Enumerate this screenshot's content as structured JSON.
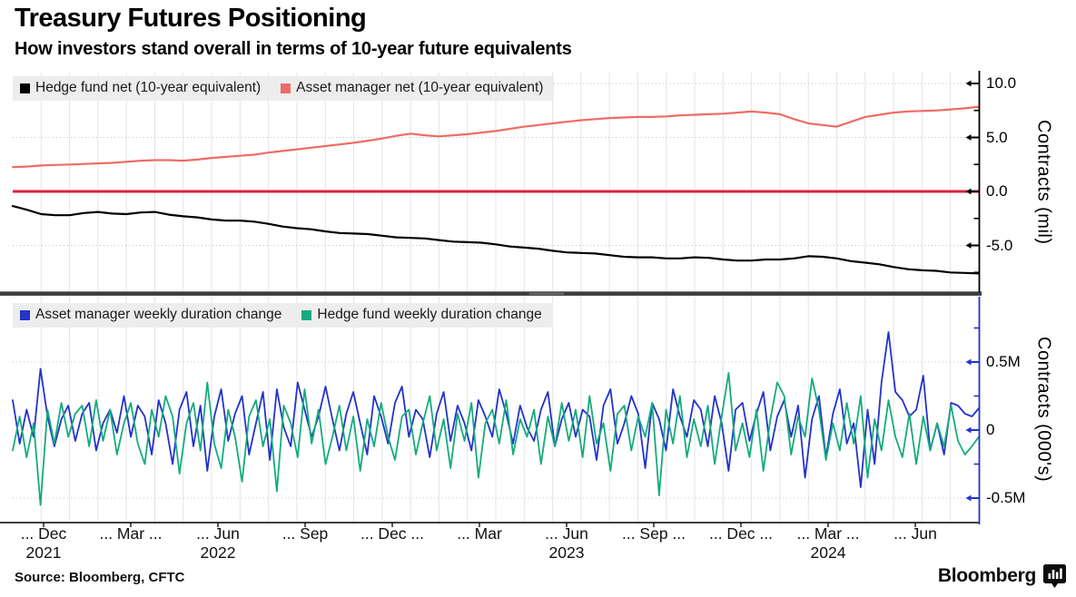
{
  "header": {
    "title": "Treasury Futures Positioning",
    "subtitle": "How investors stand overall in terms of 10-year future equivalents"
  },
  "source": {
    "label": "Source: Bloomberg, CFTC"
  },
  "branding": {
    "logo_text": "Bloomberg",
    "logo_icon": "bloomberg-bars-icon"
  },
  "colors": {
    "hedge_fund_net": "#000000",
    "asset_manager_net": "#ee6c66",
    "zero_line": "#d8213f",
    "am_duration": "#2333cb",
    "hf_duration": "#15ab7d",
    "grid_vertical": "#e4e4e4",
    "grid_dotted": "#c0c0c0",
    "legend_bg": "#ededed",
    "divider": "#3d3d3d"
  },
  "xaxis": {
    "labels": [
      {
        "label": "... Dec"
      },
      {
        "label": "... Mar ..."
      },
      {
        "label": "... Jun"
      },
      {
        "label": "... Sep"
      },
      {
        "label": "... Dec ..."
      },
      {
        "label": "... Mar"
      },
      {
        "label": "... Jun"
      },
      {
        "label": "... Sep ..."
      },
      {
        "label": "... Dec ..."
      },
      {
        "label": "... Mar ..."
      },
      {
        "label": "... Jun"
      }
    ],
    "years": [
      {
        "label": "2021"
      },
      {
        "label": "2022"
      },
      {
        "label": "2023"
      },
      {
        "label": "2024"
      }
    ],
    "range": "Oct 2021 - Jul 2024"
  },
  "chart_data": [
    {
      "type": "line",
      "panel": "top",
      "ylabel": "Contracts (mil)",
      "ylim": [
        -9.3,
        11
      ],
      "grid": true,
      "legend_position": "top-left",
      "legend": [
        {
          "label": "Hedge fund net (10-year equivalent)",
          "color_key": "hedge_fund_net"
        },
        {
          "label": "Asset manager net (10-year equivalent)",
          "color_key": "asset_manager_net"
        }
      ],
      "yticks": [
        {
          "value": 10,
          "label": "10.0"
        },
        {
          "value": 5,
          "label": "5.0"
        },
        {
          "value": 0,
          "label": "0.0"
        },
        {
          "value": -5,
          "label": "-5.0"
        }
      ],
      "zero_line": true,
      "series": [
        {
          "name": "Hedge fund net (10-year equivalent)",
          "color_key": "hedge_fund_net",
          "width": 2.2,
          "values": [
            -1.35,
            -1.7,
            -2.1,
            -2.2,
            -2.2,
            -2.0,
            -1.9,
            -2.05,
            -2.1,
            -1.95,
            -1.9,
            -2.15,
            -2.3,
            -2.4,
            -2.6,
            -2.7,
            -2.7,
            -2.8,
            -3.0,
            -3.25,
            -3.4,
            -3.5,
            -3.7,
            -3.85,
            -3.9,
            -3.95,
            -4.1,
            -4.25,
            -4.3,
            -4.35,
            -4.5,
            -4.65,
            -4.7,
            -4.75,
            -4.9,
            -5.1,
            -5.2,
            -5.3,
            -5.5,
            -5.65,
            -5.7,
            -5.75,
            -5.9,
            -6.05,
            -6.1,
            -6.1,
            -6.2,
            -6.2,
            -6.1,
            -6.15,
            -6.3,
            -6.4,
            -6.4,
            -6.3,
            -6.3,
            -6.2,
            -6.0,
            -6.05,
            -6.2,
            -6.45,
            -6.6,
            -6.75,
            -7.0,
            -7.2,
            -7.3,
            -7.35,
            -7.5,
            -7.55,
            -7.6
          ]
        },
        {
          "name": "Asset manager net (10-year equivalent)",
          "color_key": "asset_manager_net",
          "width": 2.2,
          "values": [
            2.25,
            2.3,
            2.4,
            2.45,
            2.5,
            2.55,
            2.6,
            2.65,
            2.75,
            2.85,
            2.9,
            2.9,
            2.85,
            2.95,
            3.1,
            3.2,
            3.3,
            3.4,
            3.6,
            3.75,
            3.9,
            4.05,
            4.2,
            4.35,
            4.5,
            4.7,
            4.9,
            5.15,
            5.35,
            5.2,
            5.1,
            5.2,
            5.3,
            5.45,
            5.6,
            5.8,
            6.0,
            6.15,
            6.3,
            6.45,
            6.6,
            6.7,
            6.8,
            6.85,
            6.9,
            6.9,
            6.95,
            7.05,
            7.1,
            7.15,
            7.2,
            7.3,
            7.4,
            7.3,
            7.15,
            6.7,
            6.3,
            6.15,
            6.0,
            6.45,
            6.9,
            7.1,
            7.3,
            7.4,
            7.45,
            7.5,
            7.6,
            7.7,
            7.85
          ]
        }
      ]
    },
    {
      "type": "line",
      "panel": "bottom",
      "ylabel": "Contracts (000's)",
      "ylim": [
        -0.68,
        0.96
      ],
      "grid": true,
      "legend_position": "top-left",
      "legend": [
        {
          "label": "Asset manager weekly duration change",
          "color_key": "am_duration"
        },
        {
          "label": "Hedge fund weekly duration change",
          "color_key": "hf_duration"
        }
      ],
      "yticks": [
        {
          "value": 0.5,
          "label": "0.5M"
        },
        {
          "value": 0,
          "label": "0"
        },
        {
          "value": -0.5,
          "label": "-0.5M"
        }
      ],
      "zero_line": false,
      "series": [
        {
          "name": "Asset manager weekly duration change",
          "color_key": "am_duration",
          "width": 1.8,
          "values": [
            0.22,
            -0.1,
            0.15,
            -0.05,
            0.45,
            0.1,
            -0.12,
            0.08,
            0.18,
            -0.08,
            0.12,
            0.2,
            -0.15,
            0.05,
            0.15,
            -0.02,
            0.25,
            -0.05,
            0.18,
            0.1,
            -0.18,
            0.22,
            0.05,
            -0.25,
            0.15,
            0.28,
            -0.12,
            0.18,
            -0.3,
            0.1,
            0.3,
            -0.08,
            0.12,
            0.25,
            -0.18,
            0.05,
            0.28,
            -0.22,
            0.3,
            0.02,
            -0.12,
            0.35,
            0.15,
            -0.05,
            0.1,
            0.32,
            0.08,
            -0.15,
            0.12,
            0.28,
            0.05,
            -0.18,
            0.25,
            0.1,
            -0.1,
            0.2,
            0.32,
            -0.05,
            0.15,
            0.08,
            -0.2,
            0.12,
            0.28,
            -0.08,
            0.18,
            0.05,
            -0.15,
            0.22,
            0.1,
            -0.05,
            0.3,
            0.12,
            -0.1,
            0.18,
            0.02,
            -0.08,
            0.15,
            0.28,
            -0.12,
            0.08,
            0.2,
            -0.05,
            0.15,
            0.1,
            -0.22,
            0.18,
            0.3,
            -0.1,
            0.05,
            0.25,
            0.12,
            -0.28,
            0.2,
            0.08,
            -0.15,
            0.3,
            0.1,
            -0.05,
            0.22,
            0.15,
            -0.12,
            0.25,
            0.05,
            -0.3,
            0.15,
            0.2,
            -0.08,
            0.12,
            0.28,
            -0.15,
            0.1,
            0.22,
            -0.05,
            0.18,
            -0.35,
            0.08,
            0.25,
            -0.2,
            0.12,
            0.3,
            -0.1,
            0.05,
            -0.42,
            0.15,
            -0.25,
            0.35,
            0.72,
            0.28,
            0.22,
            0.1,
            0.15,
            0.4,
            -0.15,
            0.05,
            -0.18,
            0.2,
            0.18,
            0.12,
            0.1,
            0.16
          ]
        },
        {
          "name": "Hedge fund weekly duration change",
          "color_key": "hf_duration",
          "width": 1.8,
          "values": [
            -0.15,
            0.1,
            -0.2,
            0.05,
            -0.55,
            0.15,
            -0.1,
            0.2,
            -0.05,
            0.12,
            0.18,
            -0.12,
            0.22,
            -0.08,
            0.15,
            -0.18,
            0.05,
            0.2,
            -0.1,
            -0.25,
            0.15,
            -0.05,
            0.25,
            0.1,
            -0.32,
            0.05,
            0.2,
            -0.15,
            0.35,
            -0.1,
            -0.28,
            0.15,
            -0.05,
            -0.38,
            0.1,
            0.22,
            -0.12,
            0.08,
            -0.45,
            0.18,
            0.05,
            -0.2,
            0.3,
            -0.1,
            0.15,
            -0.25,
            -0.05,
            0.18,
            -0.15,
            0.1,
            -0.3,
            0.08,
            -0.12,
            0.2,
            -0.05,
            -0.22,
            0.1,
            0.15,
            -0.18,
            0.05,
            0.25,
            -0.15,
            0.08,
            -0.28,
            0.12,
            -0.08,
            0.2,
            -0.35,
            0.05,
            0.15,
            -0.1,
            0.22,
            -0.18,
            0.08,
            -0.05,
            0.15,
            -0.25,
            0.1,
            -0.12,
            0.2,
            -0.08,
            0.15,
            -0.2,
            0.25,
            -0.1,
            0.05,
            -0.3,
            0.12,
            0.18,
            -0.15,
            0.1,
            -0.05,
            0.2,
            -0.48,
            0.15,
            -0.1,
            0.25,
            -0.2,
            0.08,
            -0.12,
            0.18,
            -0.25,
            0.1,
            0.42,
            -0.15,
            0.05,
            -0.2,
            0.15,
            -0.3,
            0.08,
            0.35,
            0.25,
            -0.18,
            0.1,
            -0.05,
            0.38,
            0.15,
            -0.22,
            0.05,
            -0.15,
            0.2,
            -0.1,
            0.25,
            -0.35,
            0.08,
            -0.15,
            0.22,
            -0.05,
            -0.2,
            0.12,
            -0.25,
            0.1,
            -0.15,
            0.05,
            -0.12,
            0.18,
            -0.08,
            -0.18,
            -0.12,
            -0.05
          ]
        }
      ]
    }
  ]
}
